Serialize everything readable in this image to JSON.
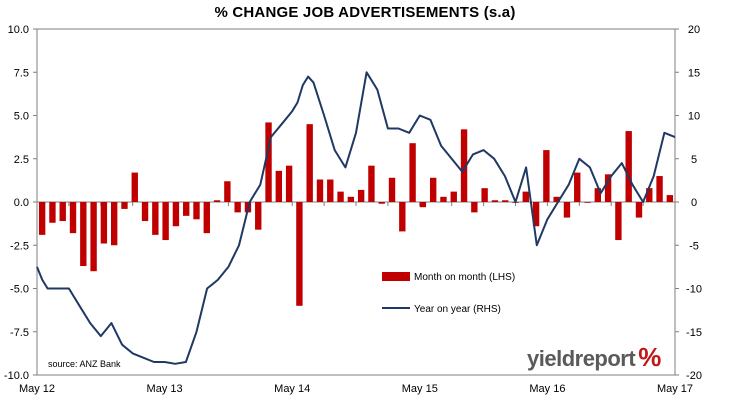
{
  "chart_data": {
    "type": "bar+line",
    "title": "% CHANGE JOB ADVERTISEMENTS (s.a)",
    "source": "source: ANZ Bank",
    "logo": {
      "text_main": "yieldreport",
      "text_mark": "%",
      "color_main": "#5a5a5a",
      "color_mark": "#c01818"
    },
    "x_axis": {
      "tick_labels": [
        "May 12",
        "May 13",
        "May 14",
        "May 15",
        "May 16",
        "May 17"
      ],
      "tick_months": [
        0,
        12,
        24,
        36,
        48,
        60
      ],
      "range_months": [
        0,
        60
      ]
    },
    "y_left": {
      "ylim": [
        -10,
        10
      ],
      "ticks": [
        -10,
        -7.5,
        -5,
        -2.5,
        0,
        2.5,
        5,
        7.5,
        10
      ],
      "tick_labels": [
        "-10.0",
        "-7.5",
        "-5.0",
        "-2.5",
        "0.0",
        "2.5",
        "5.0",
        "7.5",
        "10.0"
      ]
    },
    "y_right": {
      "ylim": [
        -20,
        20
      ],
      "ticks": [
        -20,
        -15,
        -10,
        -5,
        0,
        5,
        10,
        15,
        20
      ],
      "tick_labels": [
        "-20",
        "-15",
        "-10",
        "-5",
        "0",
        "5",
        "10",
        "15",
        "20"
      ]
    },
    "legend": {
      "placement": "lower-middle"
    },
    "series": [
      {
        "name": "Month on month (LHS)",
        "type": "bar",
        "axis": "left",
        "color": "#c00000",
        "values": [
          -1.9,
          -1.2,
          -1.1,
          -1.8,
          -3.7,
          -4.0,
          -2.4,
          -2.5,
          -0.4,
          1.7,
          -1.1,
          -1.9,
          -2.2,
          -1.4,
          -0.8,
          -1.0,
          -1.8,
          0.1,
          1.2,
          -0.6,
          -0.6,
          -1.6,
          4.6,
          1.8,
          2.1,
          -6.0,
          4.5,
          1.3,
          1.3,
          0.6,
          0.3,
          0.7,
          2.1,
          -0.1,
          1.4,
          -1.7,
          3.4,
          -0.3,
          1.4,
          0.3,
          0.6,
          4.2,
          -0.6,
          0.8,
          0.1,
          0.1,
          0.0,
          0.6,
          -1.4,
          3.0,
          0.3,
          -0.9,
          1.7,
          0.0,
          0.8,
          1.6,
          -2.2,
          4.1,
          -0.9,
          0.8,
          1.5,
          0.4
        ]
      },
      {
        "name": "Year on year (RHS)",
        "type": "line",
        "axis": "right",
        "color": "#1f3864",
        "x": [
          0,
          0.5,
          1,
          1.5,
          2,
          3,
          4,
          5,
          6,
          7,
          8,
          9,
          10,
          11,
          12,
          13,
          14,
          15,
          16,
          16.5,
          17,
          18,
          19,
          20,
          21,
          22,
          23,
          24,
          24.5,
          25,
          25.5,
          26,
          27,
          28,
          29,
          30,
          31,
          32,
          33,
          34,
          35,
          36,
          37,
          38,
          39,
          40,
          41,
          42,
          43,
          44,
          45,
          46,
          47,
          48,
          49,
          50,
          51,
          52,
          53,
          54,
          55,
          56,
          57,
          58,
          59,
          60
        ],
        "y": [
          -7.5,
          -9.0,
          -10.0,
          -10.0,
          -10.0,
          -10.0,
          -12.0,
          -14.0,
          -15.5,
          -14.0,
          -16.5,
          -17.5,
          -18.0,
          -18.5,
          -18.5,
          -18.7,
          -18.5,
          -15.0,
          -10.0,
          -9.5,
          -9.0,
          -7.5,
          -5.0,
          0.0,
          2.0,
          7.5,
          9.0,
          10.5,
          11.5,
          13.5,
          14.5,
          13.8,
          10.0,
          6.0,
          4.0,
          8.0,
          15.0,
          13.0,
          8.5,
          8.5,
          8.0,
          10.0,
          9.5,
          6.5,
          5.0,
          3.5,
          5.5,
          6.0,
          5.0,
          3.0,
          0.0,
          4.0,
          -5.0,
          -2.0,
          0.0,
          2.0,
          5.0,
          4.0,
          1.0,
          3.0,
          4.5,
          2.0,
          0.0,
          3.0,
          8.0,
          7.5
        ]
      }
    ]
  }
}
